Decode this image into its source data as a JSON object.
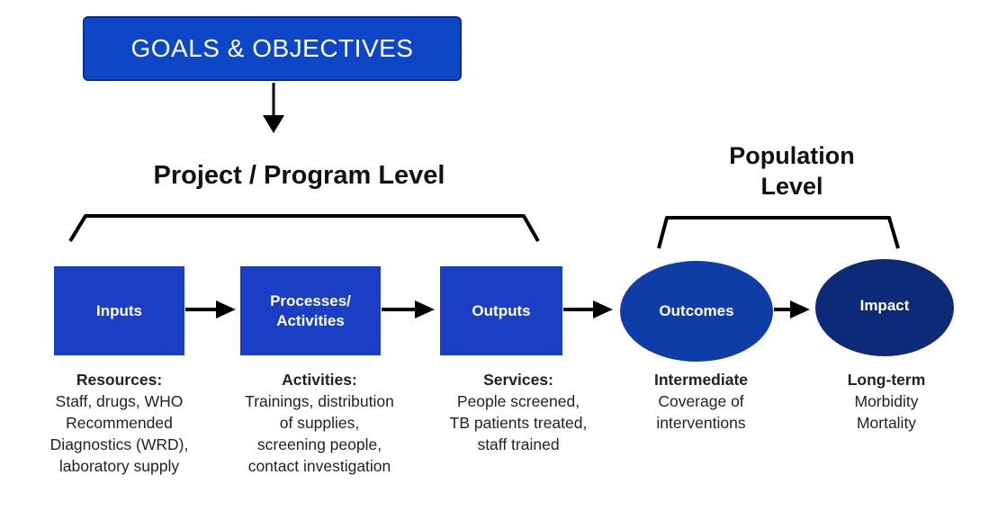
{
  "goals": {
    "label": "GOALS & OBJECTIVES"
  },
  "levels": {
    "project": "Project / Program Level",
    "population": "Population\nLevel"
  },
  "nodes": {
    "inputs": "Inputs",
    "processes": "Processes/\nActivities",
    "outputs": "Outputs",
    "outcomes": "Outcomes",
    "impact": "Impact"
  },
  "captions": {
    "resources": {
      "title": "Resources:",
      "body": "Staff, drugs, WHO\nRecommended\nDiagnostics (WRD),\nlaboratory supply"
    },
    "activities": {
      "title": "Activities:",
      "body": "Trainings, distribution\nof  supplies,\nscreening people,\ncontact investigation"
    },
    "services": {
      "title": "Services:",
      "body": "People screened,\nTB patients treated,\nstaff trained"
    },
    "intermediate": {
      "title": "Intermediate",
      "body": "Coverage of\ninterventions"
    },
    "longterm": {
      "title": "Long-term",
      "body": "Morbidity\nMortality"
    }
  },
  "colors": {
    "goals_fill": "#0d47c8",
    "box_fill": "#1b3fc4",
    "outcomes_fill": "#0e3da8",
    "impact_fill": "#0c2a78",
    "arrow": "#000000"
  },
  "icons": {
    "arrow": "arrow-right-icon",
    "bracket": "bracket-icon"
  }
}
